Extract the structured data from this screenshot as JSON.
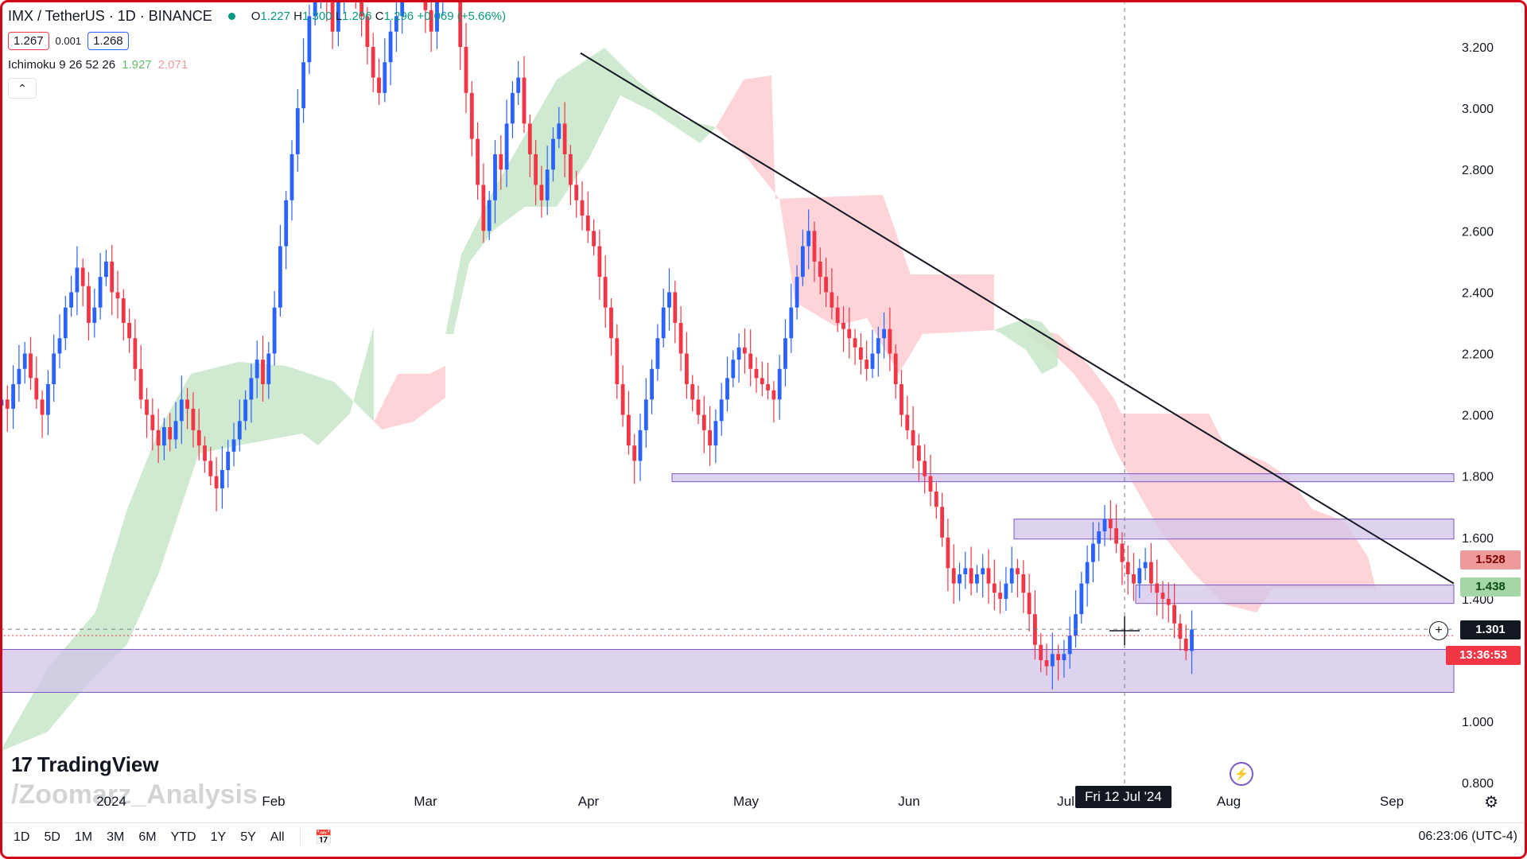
{
  "header": {
    "symbol": "IMX / TetherUS · 1D · BINANCE",
    "ohlc": {
      "o_label": "O",
      "o": "1.227",
      "h_label": "H",
      "h": "1.300",
      "l_label": "L",
      "l": "1.206",
      "c_label": "C",
      "c": "1.296",
      "change": "+0.069 (+5.66%)"
    },
    "bid": "1.267",
    "spread": "0.001",
    "ask": "1.268",
    "indicator": "Ichimoku 9 26 52 26",
    "indicator_a": "1.927",
    "indicator_b": "2.071",
    "collapse_icon": "chevron-up-icon"
  },
  "price_tags": {
    "span_b": "1.528",
    "span_a": "1.438",
    "last": "1.301",
    "countdown": "13:36:53"
  },
  "crosshair_date": "Fri 12 Jul '24",
  "branding": {
    "logo": "TradingView",
    "watermark": "/Zoomarz_Analysis"
  },
  "timeframes": [
    "1D",
    "5D",
    "1M",
    "3M",
    "6M",
    "YTD",
    "1Y",
    "5Y",
    "All"
  ],
  "clock": "06:23:06 (UTC-4)",
  "colors": {
    "up": "#2962ff",
    "down": "#f23645",
    "cloud_bull": "#c8e6c9",
    "cloud_bear": "#ffcdd2",
    "zone": "#d1c4e9"
  },
  "chart_data": {
    "type": "candlestick",
    "price_axis": {
      "ticks": [
        3.2,
        3.0,
        2.8,
        2.6,
        2.4,
        2.2,
        2.0,
        1.8,
        1.6,
        1.4,
        1.0,
        0.8
      ],
      "labels": [
        "3.200",
        "3.000",
        "2.800",
        "2.600",
        "2.400",
        "2.200",
        "2.000",
        "1.800",
        "1.600",
        "1.400",
        "1.000",
        "0.800"
      ]
    },
    "time_axis": {
      "labels": [
        "2024",
        "Feb",
        "Mar",
        "Apr",
        "May",
        "Jun",
        "Jul",
        "Aug",
        "Sep"
      ]
    },
    "crosshair_price": 1.301,
    "zones": [
      {
        "from": 1.782,
        "to": 1.808
      },
      {
        "from": 1.595,
        "to": 1.66
      },
      {
        "from": 1.385,
        "to": 1.445
      },
      {
        "from": 1.095,
        "to": 1.235
      }
    ],
    "trendline": {
      "start": {
        "date": "2024-03-31",
        "price": 3.18
      },
      "end": {
        "date": "2024-08-31",
        "price": 1.45
      }
    },
    "closes": [
      2.05,
      2.02,
      2.1,
      2.15,
      2.2,
      2.12,
      2.05,
      2.0,
      2.1,
      2.2,
      2.25,
      2.35,
      2.4,
      2.48,
      2.42,
      2.3,
      2.35,
      2.45,
      2.5,
      2.4,
      2.38,
      2.3,
      2.25,
      2.15,
      2.05,
      2.0,
      1.95,
      1.9,
      1.96,
      1.92,
      1.98,
      2.05,
      2.02,
      1.95,
      1.9,
      1.85,
      1.8,
      1.76,
      1.82,
      1.88,
      1.92,
      1.98,
      2.05,
      2.12,
      2.18,
      2.1,
      2.2,
      2.35,
      2.55,
      2.7,
      2.85,
      3.0,
      3.15,
      3.3,
      3.4,
      3.45,
      3.35,
      3.25,
      3.35,
      3.45,
      3.5,
      3.4,
      3.3,
      3.2,
      3.1,
      3.05,
      3.15,
      3.25,
      3.3,
      3.4,
      3.45,
      3.5,
      3.42,
      3.32,
      3.25,
      3.35,
      3.45,
      3.55,
      3.4,
      3.2,
      3.05,
      2.9,
      2.75,
      2.6,
      2.7,
      2.85,
      2.8,
      2.95,
      3.05,
      3.1,
      2.95,
      2.85,
      2.75,
      2.7,
      2.8,
      2.9,
      2.95,
      2.85,
      2.75,
      2.7,
      2.65,
      2.6,
      2.55,
      2.45,
      2.35,
      2.25,
      2.1,
      2.0,
      1.9,
      1.85,
      1.95,
      2.05,
      2.15,
      2.25,
      2.35,
      2.4,
      2.3,
      2.2,
      2.1,
      2.05,
      2.0,
      1.95,
      1.9,
      1.98,
      2.05,
      2.12,
      2.18,
      2.22,
      2.2,
      2.15,
      2.12,
      2.1,
      2.08,
      2.05,
      2.15,
      2.25,
      2.35,
      2.45,
      2.55,
      2.6,
      2.5,
      2.45,
      2.4,
      2.35,
      2.3,
      2.28,
      2.25,
      2.22,
      2.18,
      2.15,
      2.2,
      2.25,
      2.28,
      2.2,
      2.1,
      2.0,
      1.95,
      1.9,
      1.85,
      1.8,
      1.75,
      1.7,
      1.6,
      1.5,
      1.45,
      1.48,
      1.5,
      1.45,
      1.48,
      1.5,
      1.45,
      1.42,
      1.4,
      1.45,
      1.5,
      1.48,
      1.42,
      1.35,
      1.25,
      1.2,
      1.18,
      1.22,
      1.2,
      1.22,
      1.28,
      1.35,
      1.45,
      1.52,
      1.58,
      1.62,
      1.66,
      1.63,
      1.58,
      1.52,
      1.48,
      1.45,
      1.5,
      1.52,
      1.45,
      1.42,
      1.4,
      1.38,
      1.32,
      1.27,
      1.23,
      1.3
    ]
  }
}
